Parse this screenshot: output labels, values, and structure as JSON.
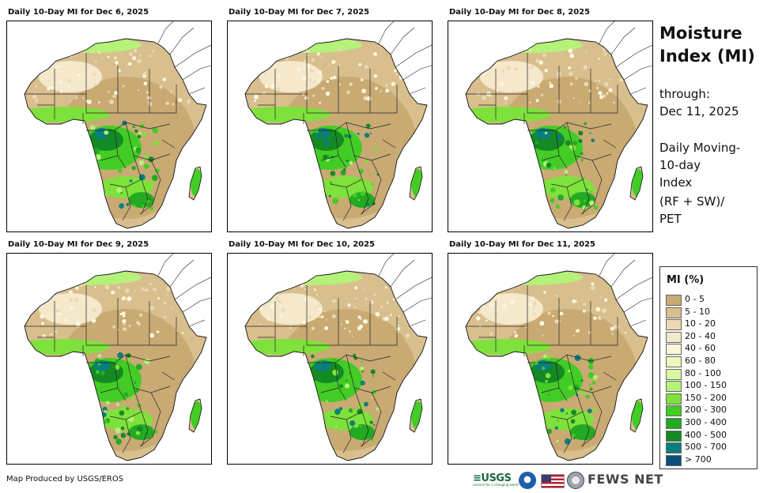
{
  "panels": [
    {
      "title": "Daily 10-Day MI for Dec 6, 2025"
    },
    {
      "title": "Daily 10-Day MI for Dec 7, 2025"
    },
    {
      "title": "Daily 10-Day MI for Dec 8, 2025"
    },
    {
      "title": "Daily 10-Day MI for Dec 9, 2025"
    },
    {
      "title": "Daily 10-Day MI for Dec 10, 2025"
    },
    {
      "title": "Daily 10-Day MI for Dec 11, 2025"
    }
  ],
  "sidebar": {
    "title_line1": "Moisture",
    "title_line2": "Index (MI)",
    "through_label": "through:",
    "through_date": "Dec 11, 2025",
    "desc_line1": "Daily Moving-",
    "desc_line2": "10-day",
    "desc_line3": "Index",
    "formula_line1": "(RF + SW)/",
    "formula_line2": "PET"
  },
  "legend": {
    "title": "MI (%)",
    "items": [
      {
        "label": "0 - 5",
        "color": "#c9aa73"
      },
      {
        "label": "5 - 10",
        "color": "#d9bf8e"
      },
      {
        "label": "10 - 20",
        "color": "#ecd9b5"
      },
      {
        "label": "20 - 40",
        "color": "#f5e8cb"
      },
      {
        "label": "40 - 60",
        "color": "#fbf7dc"
      },
      {
        "label": "60 - 80",
        "color": "#eff9bd"
      },
      {
        "label": "80 - 100",
        "color": "#d9f7a3"
      },
      {
        "label": "100 - 150",
        "color": "#b4f27a"
      },
      {
        "label": "150 - 200",
        "color": "#7fe13c"
      },
      {
        "label": "200 - 300",
        "color": "#43cc26"
      },
      {
        "label": "300 - 400",
        "color": "#22aa22"
      },
      {
        "label": "400 - 500",
        "color": "#148a24"
      },
      {
        "label": "500 - 700",
        "color": "#0b7e7e"
      },
      {
        "label": "> 700",
        "color": "#0b4f7a"
      }
    ]
  },
  "footer": {
    "credit": "Map Produced by USGS/EROS",
    "usgs_logo": "≡USGS",
    "usgs_tagline": "science for a changing world",
    "noaa_logo_icon": "noaa-logo-icon",
    "flag_icon": "us-flag-icon",
    "seal_icon": "state-dept-seal-icon",
    "fews_logo": "FEWS NET"
  }
}
